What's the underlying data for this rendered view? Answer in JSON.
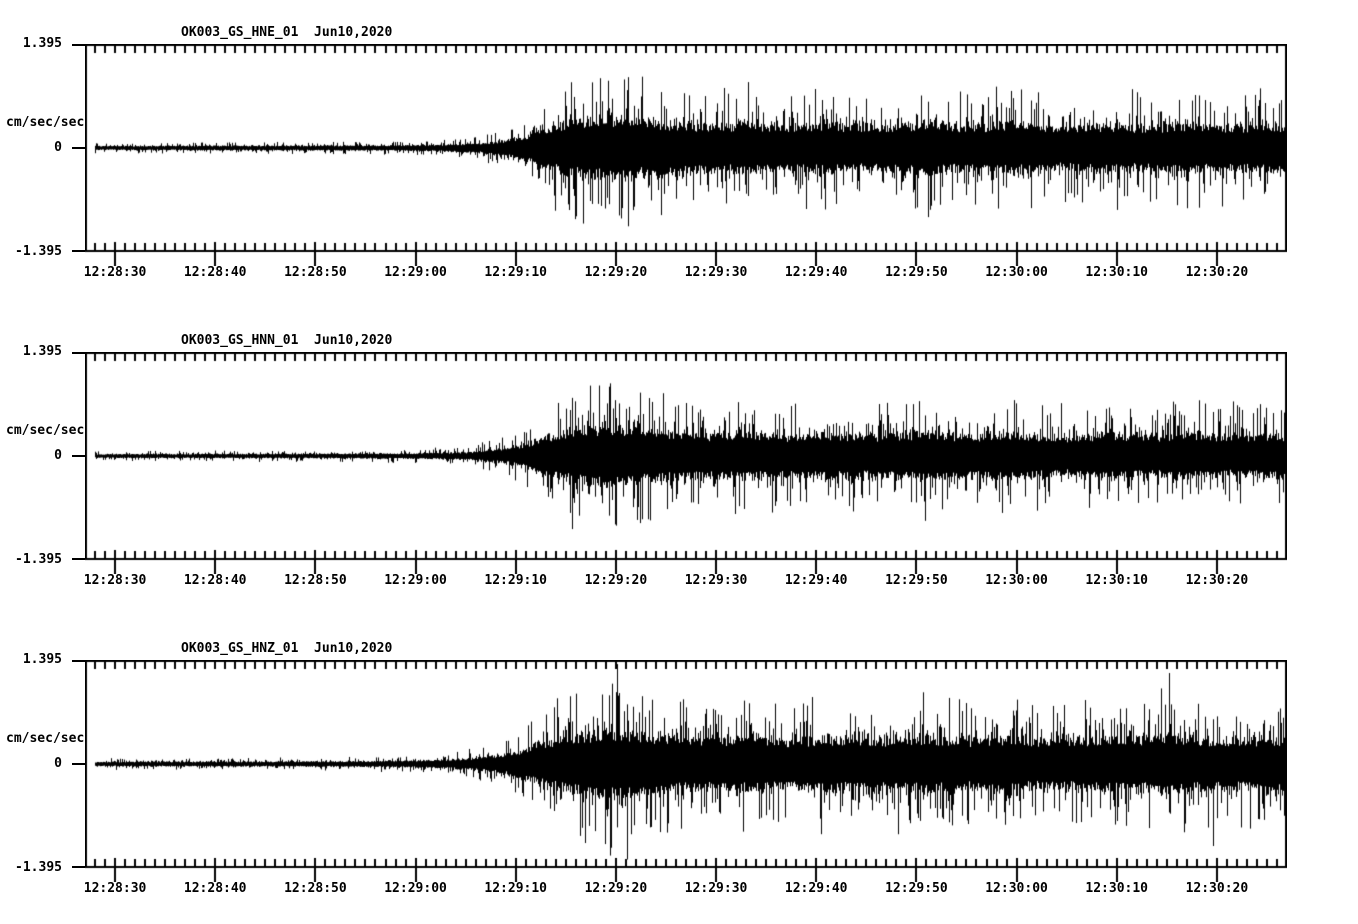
{
  "page": {
    "background": "#ffffff",
    "foreground": "#000000"
  },
  "chart_data": [
    {
      "type": "line",
      "kind": "seismogram-waveform",
      "title": "OK003_GS_HNE_01  Jun10,2020",
      "station_channel": "OK003_GS_HNE_01",
      "date": "Jun10,2020",
      "ylabel": "cm/sec/sec",
      "yticks": [
        "1.395",
        "0",
        "-1.395"
      ],
      "ylim": [
        -1.395,
        1.395
      ],
      "x_start_time": "12:28:27",
      "x_end_time": "12:30:27",
      "x_span_seconds": 120,
      "x_major_tick_interval_seconds": 10,
      "x_minor_tick_interval_seconds": 1,
      "xtick_labels": [
        "12:28:30",
        "12:28:40",
        "12:28:50",
        "12:29:00",
        "12:29:10",
        "12:29:20",
        "12:29:30",
        "12:29:40",
        "12:29:50",
        "12:30:00",
        "12:30:10",
        "12:30:20"
      ],
      "xtick_seconds": [
        3,
        13,
        23,
        33,
        43,
        53,
        63,
        73,
        83,
        93,
        103,
        113
      ],
      "trace_start_seconds": 1,
      "envelope_dt_seconds": 2,
      "envelope": [
        0.05,
        0.05,
        0.052,
        0.052,
        0.054,
        0.054,
        0.056,
        0.056,
        0.058,
        0.058,
        0.06,
        0.06,
        0.062,
        0.064,
        0.066,
        0.068,
        0.072,
        0.078,
        0.088,
        0.105,
        0.14,
        0.2,
        0.33,
        0.52,
        0.68,
        0.76,
        0.8,
        0.78,
        0.72,
        0.67,
        0.63,
        0.6,
        0.62,
        0.64,
        0.6,
        0.57,
        0.6,
        0.64,
        0.6,
        0.56,
        0.59,
        0.63,
        0.66,
        0.62,
        0.58,
        0.6,
        0.64,
        0.6,
        0.57,
        0.55,
        0.58,
        0.62,
        0.59,
        0.56,
        0.59,
        0.63,
        0.6,
        0.57,
        0.59,
        0.61,
        0.6
      ],
      "peaks": [
        {
          "t": 54.2,
          "up": 0.95,
          "dn": 1.05
        },
        {
          "t": 50.6,
          "up": 0.88,
          "dn": 0.75
        },
        {
          "t": 57.5,
          "up": 0.75,
          "dn": 0.9
        }
      ],
      "seed": 1101
    },
    {
      "type": "line",
      "kind": "seismogram-waveform",
      "title": "OK003_GS_HNN_01  Jun10,2020",
      "station_channel": "OK003_GS_HNN_01",
      "date": "Jun10,2020",
      "ylabel": "cm/sec/sec",
      "yticks": [
        "1.395",
        "0",
        "-1.395"
      ],
      "ylim": [
        -1.395,
        1.395
      ],
      "x_start_time": "12:28:27",
      "x_end_time": "12:30:27",
      "x_span_seconds": 120,
      "x_major_tick_interval_seconds": 10,
      "x_minor_tick_interval_seconds": 1,
      "xtick_labels": [
        "12:28:30",
        "12:28:40",
        "12:28:50",
        "12:29:00",
        "12:29:10",
        "12:29:20",
        "12:29:30",
        "12:29:40",
        "12:29:50",
        "12:30:00",
        "12:30:10",
        "12:30:20"
      ],
      "xtick_seconds": [
        3,
        13,
        23,
        33,
        43,
        53,
        63,
        73,
        83,
        93,
        103,
        113
      ],
      "trace_start_seconds": 1,
      "envelope_dt_seconds": 2,
      "envelope": [
        0.048,
        0.048,
        0.05,
        0.05,
        0.052,
        0.052,
        0.054,
        0.054,
        0.056,
        0.056,
        0.058,
        0.058,
        0.06,
        0.062,
        0.064,
        0.066,
        0.07,
        0.076,
        0.085,
        0.1,
        0.135,
        0.19,
        0.32,
        0.5,
        0.65,
        0.74,
        0.77,
        0.73,
        0.68,
        0.63,
        0.59,
        0.56,
        0.58,
        0.61,
        0.57,
        0.54,
        0.57,
        0.6,
        0.56,
        0.53,
        0.56,
        0.59,
        0.62,
        0.58,
        0.54,
        0.56,
        0.6,
        0.56,
        0.53,
        0.51,
        0.54,
        0.58,
        0.55,
        0.52,
        0.55,
        0.58,
        0.55,
        0.52,
        0.54,
        0.56,
        0.55
      ],
      "peaks": [
        {
          "t": 52.3,
          "up": 0.93,
          "dn": 0.8
        },
        {
          "t": 48.6,
          "up": 0.78,
          "dn": 0.98
        },
        {
          "t": 55.4,
          "up": 0.85,
          "dn": 0.9
        }
      ],
      "seed": 2202
    },
    {
      "type": "line",
      "kind": "seismogram-waveform",
      "title": "OK003_GS_HNZ_01  Jun10,2020",
      "station_channel": "OK003_GS_HNZ_01",
      "date": "Jun10,2020",
      "ylabel": "cm/sec/sec",
      "yticks": [
        "1.395",
        "0",
        "-1.395"
      ],
      "ylim": [
        -1.395,
        1.395
      ],
      "x_start_time": "12:28:27",
      "x_end_time": "12:30:27",
      "x_span_seconds": 120,
      "x_major_tick_interval_seconds": 10,
      "x_minor_tick_interval_seconds": 1,
      "xtick_labels": [
        "12:28:30",
        "12:28:40",
        "12:28:50",
        "12:29:00",
        "12:29:10",
        "12:29:20",
        "12:29:30",
        "12:29:40",
        "12:29:50",
        "12:30:00",
        "12:30:10",
        "12:30:20"
      ],
      "xtick_seconds": [
        3,
        13,
        23,
        33,
        43,
        53,
        63,
        73,
        83,
        93,
        103,
        113
      ],
      "trace_start_seconds": 1,
      "envelope_dt_seconds": 2,
      "envelope": [
        0.055,
        0.055,
        0.057,
        0.057,
        0.059,
        0.059,
        0.061,
        0.061,
        0.063,
        0.063,
        0.065,
        0.067,
        0.069,
        0.071,
        0.075,
        0.08,
        0.088,
        0.098,
        0.115,
        0.145,
        0.19,
        0.27,
        0.4,
        0.56,
        0.7,
        0.8,
        0.86,
        0.84,
        0.78,
        0.72,
        0.68,
        0.65,
        0.67,
        0.7,
        0.66,
        0.63,
        0.66,
        0.7,
        0.66,
        0.62,
        0.65,
        0.69,
        0.72,
        0.68,
        0.64,
        0.66,
        0.7,
        0.66,
        0.63,
        0.65,
        0.68,
        0.71,
        0.68,
        0.7,
        0.74,
        0.7,
        0.67,
        0.64,
        0.66,
        0.68,
        0.66
      ],
      "peaks": [
        {
          "t": 53.1,
          "up": 1.34,
          "dn": 0.85
        },
        {
          "t": 54.1,
          "up": 0.8,
          "dn": 1.28
        },
        {
          "t": 108.2,
          "up": 1.22,
          "dn": 0.65
        },
        {
          "t": 112.6,
          "up": 0.6,
          "dn": 1.1
        }
      ],
      "seed": 3303
    }
  ]
}
